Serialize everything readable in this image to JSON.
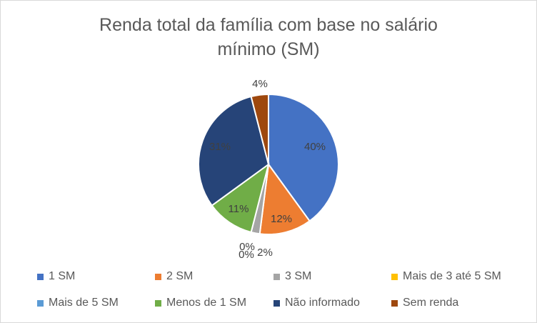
{
  "chart_data": {
    "type": "pie",
    "title_line1": "Renda total da família com base no salário",
    "title_line2": "mínimo (SM)",
    "slices": [
      {
        "name": "1 SM",
        "value": 40,
        "label": "40%",
        "color": "#4472C4"
      },
      {
        "name": "2 SM",
        "value": 12,
        "label": "12%",
        "color": "#ED7D31"
      },
      {
        "name": "3 SM",
        "value": 2,
        "label": "2%",
        "color": "#A5A5A5"
      },
      {
        "name": "Mais de 3 até 5 SM",
        "value": 0,
        "label": "0%",
        "color": "#FFC000"
      },
      {
        "name": "Mais de 5 SM",
        "value": 0,
        "label": "0%",
        "color": "#5B9BD5"
      },
      {
        "name": "Menos de 1 SM",
        "value": 11,
        "label": "11%",
        "color": "#70AD47"
      },
      {
        "name": "Não informado",
        "value": 31,
        "label": "31%",
        "color": "#264478"
      },
      {
        "name": "Sem renda",
        "value": 4,
        "label": "4%",
        "color": "#9E480E"
      }
    ],
    "legend_position": "bottom"
  }
}
